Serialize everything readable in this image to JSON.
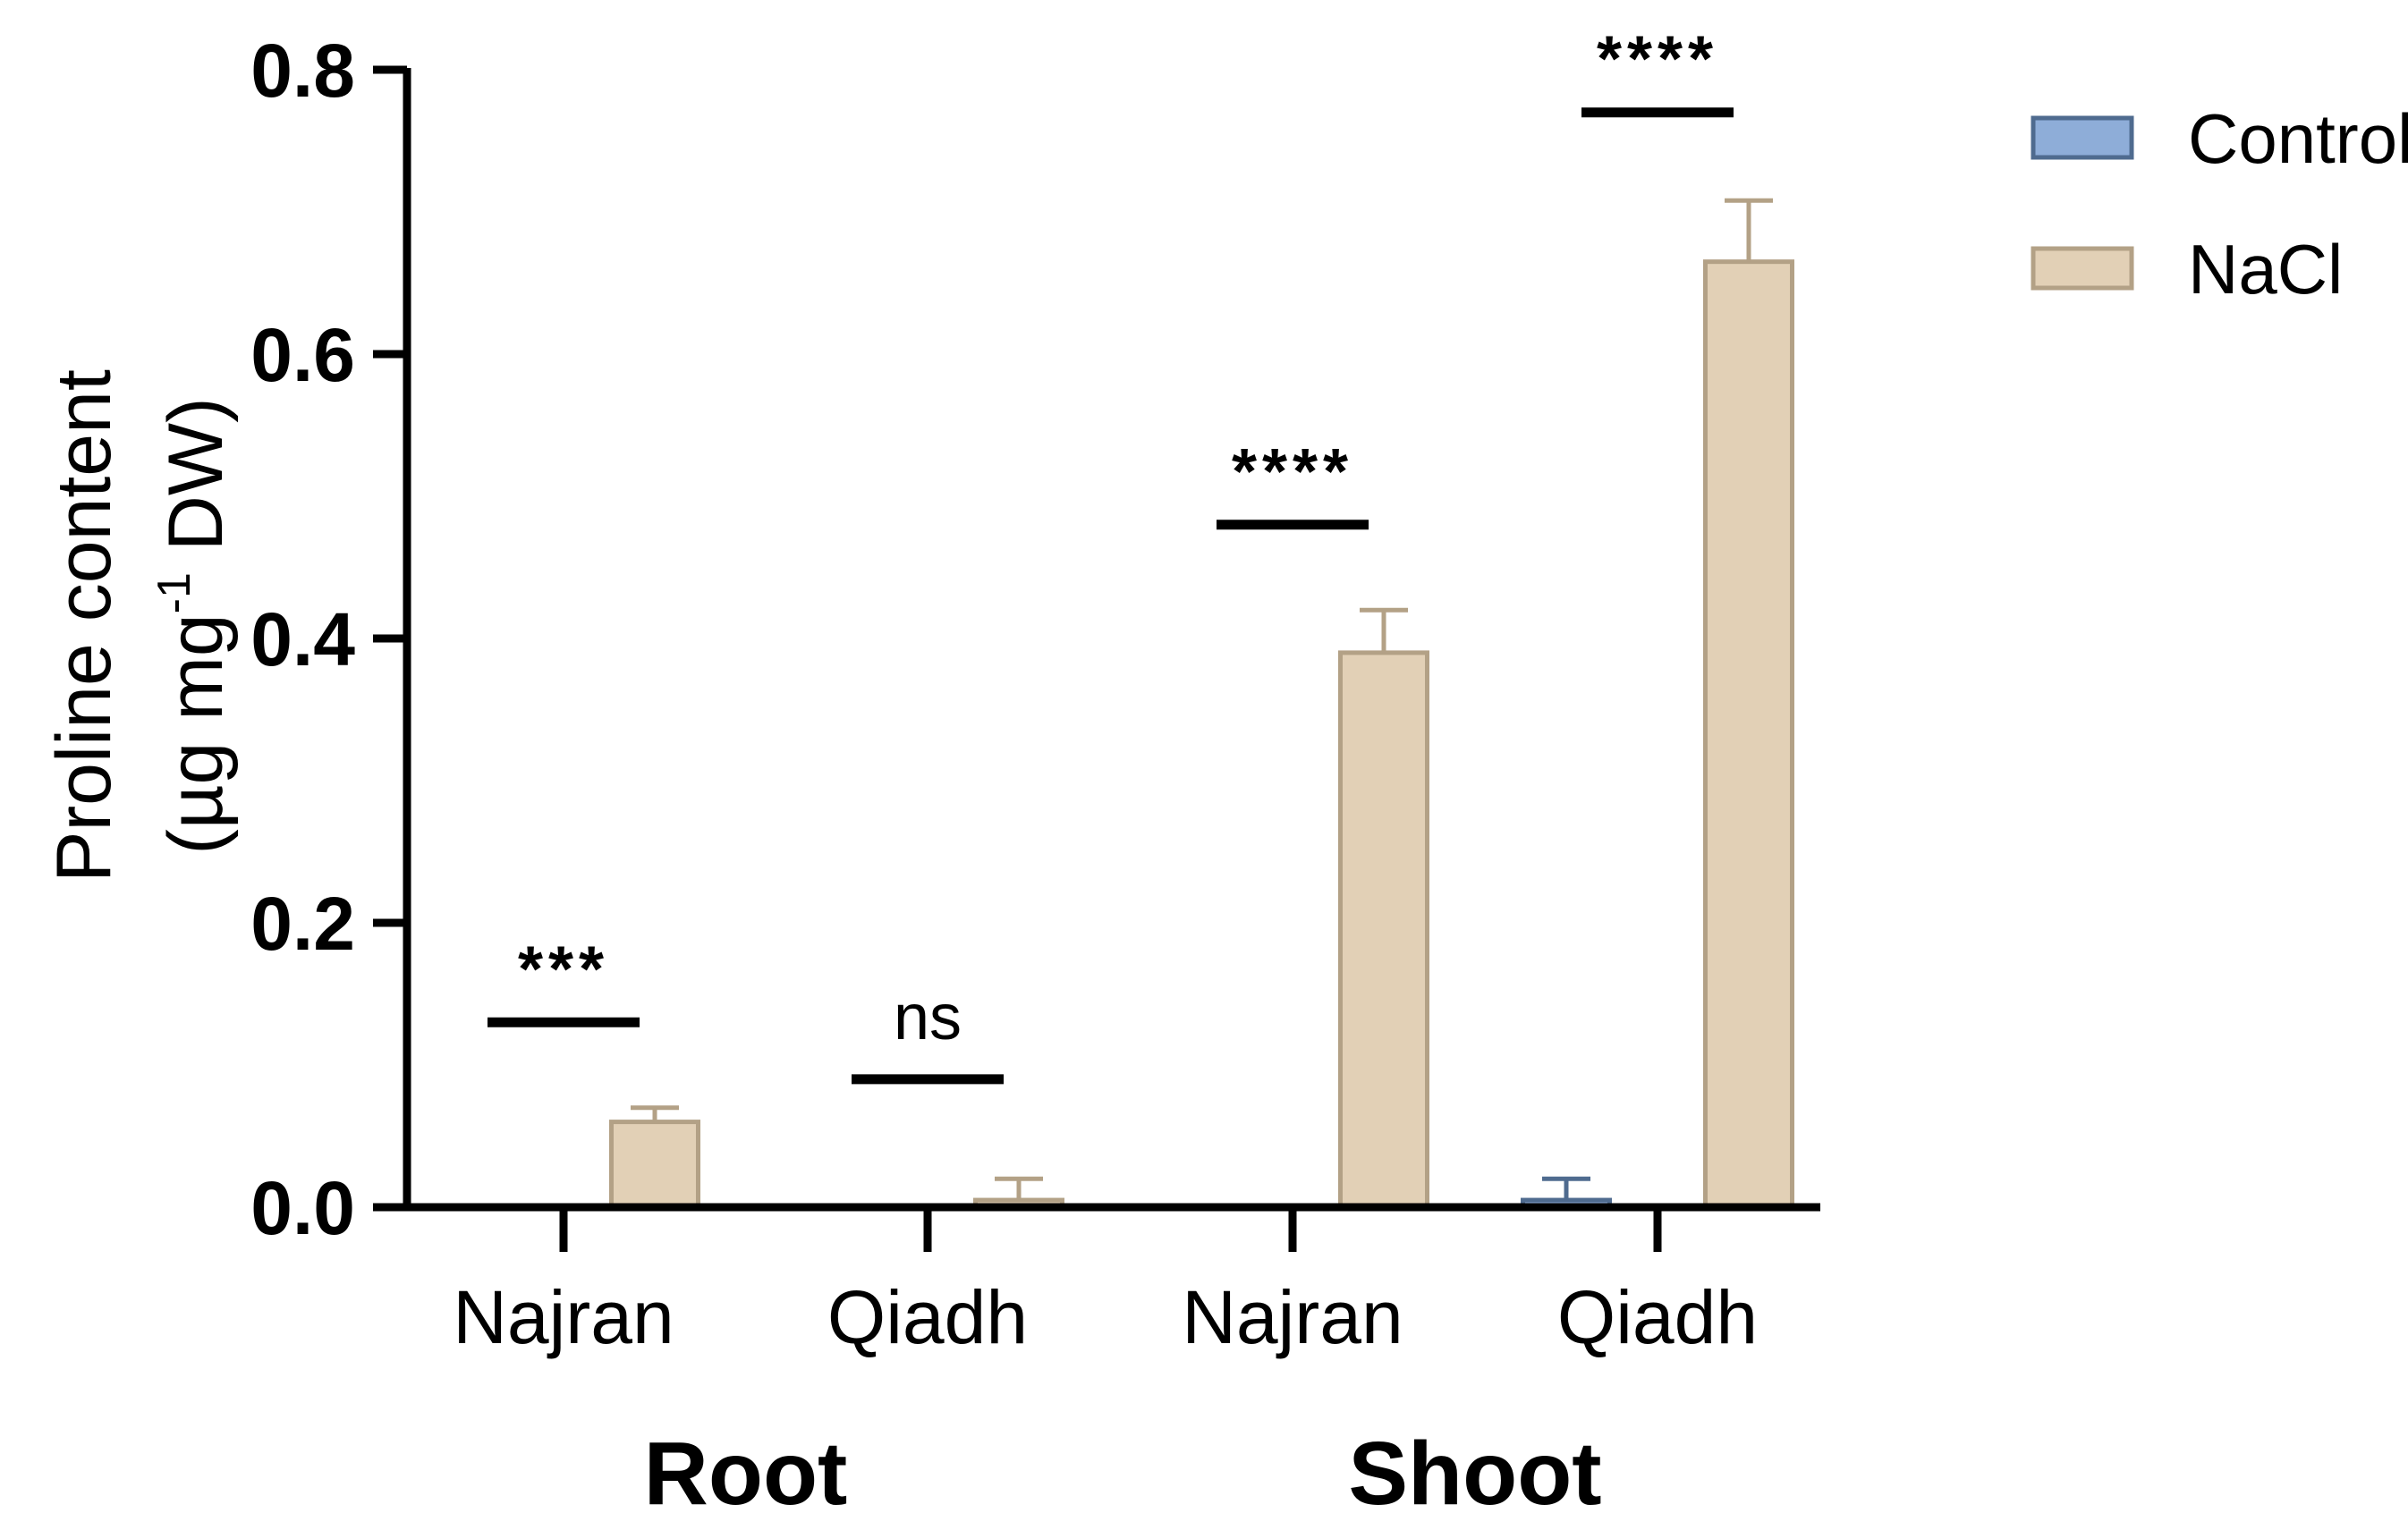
{
  "chart_data": {
    "type": "bar",
    "title": "",
    "ylabel_line1": "Proline content",
    "ylabel_line2_prefix": "(µg mg",
    "ylabel_line2_sup": "-1",
    "ylabel_line2_suffix": " DW)",
    "ylim": [
      0,
      0.8
    ],
    "yticks": [
      "0.0",
      "0.2",
      "0.4",
      "0.6",
      "0.8"
    ],
    "ytick_values": [
      0,
      0.2,
      0.4,
      0.6,
      0.8
    ],
    "categories": [
      "Najran",
      "Qiadh",
      "Najran",
      "Qiadh"
    ],
    "groups": [
      {
        "label": "Root",
        "category_indices": [
          0,
          1
        ]
      },
      {
        "label": "Shoot",
        "category_indices": [
          2,
          3
        ]
      }
    ],
    "series": [
      {
        "name": "Control",
        "color": "#8eadd8",
        "edge": "#4f6b8f",
        "values": [
          0,
          0,
          0,
          0.005
        ],
        "errors": [
          0,
          0,
          0,
          0.015
        ]
      },
      {
        "name": "NaCl",
        "color": "#e2d0b6",
        "edge": "#b3a186",
        "values": [
          0.06,
          0.005,
          0.39,
          0.665
        ],
        "errors": [
          0.01,
          0.015,
          0.03,
          0.043
        ]
      }
    ],
    "significance": [
      {
        "label": "***",
        "y": 0.13
      },
      {
        "label": "ns",
        "y": 0.09
      },
      {
        "label": "****",
        "y": 0.48
      },
      {
        "label": "****",
        "y": 0.77
      }
    ],
    "legend_position": "top-right",
    "grid": false
  }
}
